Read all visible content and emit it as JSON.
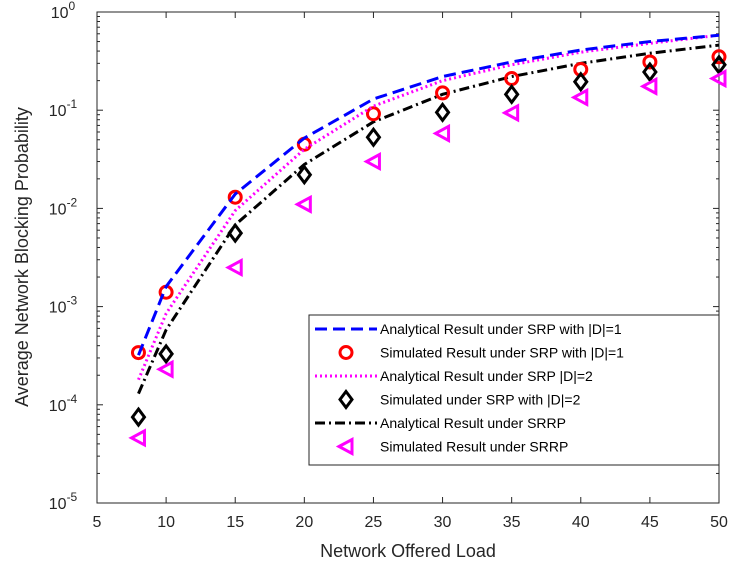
{
  "chart_data": {
    "type": "line",
    "xlabel": "Network Offered Load",
    "ylabel": "Average Network Blocking Probability",
    "xlim": [
      5,
      50
    ],
    "ylim_exp": [
      -5,
      0
    ],
    "yscale": "log",
    "x_ticks": [
      "5",
      "10",
      "15",
      "20",
      "25",
      "30",
      "35",
      "40",
      "45",
      "50"
    ],
    "y_ticks": [
      {
        "base": "10",
        "exp": "-5"
      },
      {
        "base": "10",
        "exp": "-4"
      },
      {
        "base": "10",
        "exp": "-3"
      },
      {
        "base": "10",
        "exp": "-2"
      },
      {
        "base": "10",
        "exp": "-1"
      },
      {
        "base": "10",
        "exp": "0"
      }
    ],
    "grid": false,
    "legend_position": "bottom-right",
    "series": [
      {
        "name": "Analytical Result under SRP with |D|=1",
        "style": "dashed-line",
        "color": "#0000ff",
        "x": [
          8,
          10,
          15,
          20,
          25,
          30,
          35,
          40,
          45,
          50
        ],
        "y": [
          0.00032,
          0.0016,
          0.014,
          0.052,
          0.13,
          0.22,
          0.31,
          0.41,
          0.5,
          0.58
        ]
      },
      {
        "name": "Simulated Result under SRP with |D|=1",
        "style": "circle-marker",
        "color": "#ff0000",
        "x": [
          8,
          10,
          15,
          20,
          25,
          30,
          35,
          40,
          45,
          50
        ],
        "y": [
          0.00034,
          0.0014,
          0.013,
          0.045,
          0.092,
          0.15,
          0.21,
          0.26,
          0.31,
          0.35
        ]
      },
      {
        "name": "Analytical Result under SRP |D|=2",
        "style": "dotted-line",
        "color": "#ff00ff",
        "x": [
          8,
          10,
          15,
          20,
          25,
          30,
          35,
          40,
          45,
          50
        ],
        "y": [
          0.00018,
          0.00085,
          0.0095,
          0.04,
          0.11,
          0.2,
          0.29,
          0.39,
          0.48,
          0.58
        ]
      },
      {
        "name": "Simulated under SRP with |D|=2",
        "style": "diamond-marker",
        "color": "#000000",
        "x": [
          8,
          10,
          15,
          20,
          25,
          30,
          35,
          40,
          45,
          50
        ],
        "y": [
          7.5e-05,
          0.00033,
          0.0056,
          0.022,
          0.053,
          0.095,
          0.145,
          0.195,
          0.245,
          0.29
        ]
      },
      {
        "name": "Analytical Result under SRRP",
        "style": "dashdot-line",
        "color": "#000000",
        "x": [
          8,
          10,
          15,
          20,
          25,
          30,
          35,
          40,
          45,
          50
        ],
        "y": [
          0.00013,
          0.00058,
          0.0068,
          0.028,
          0.076,
          0.145,
          0.22,
          0.3,
          0.38,
          0.46
        ]
      },
      {
        "name": "Simulated Result under SRRP",
        "style": "triangle-left-marker",
        "color": "#ff00ff",
        "x": [
          8,
          10,
          15,
          20,
          25,
          30,
          35,
          40,
          45,
          50
        ],
        "y": [
          4.6e-05,
          0.00023,
          0.0025,
          0.011,
          0.03,
          0.058,
          0.094,
          0.135,
          0.175,
          0.21
        ]
      }
    ]
  }
}
